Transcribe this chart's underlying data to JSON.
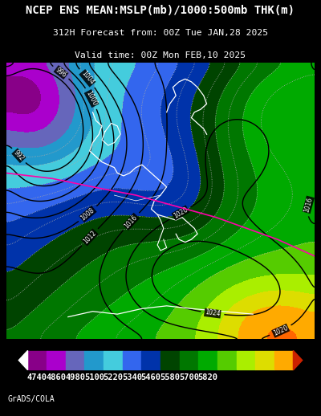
{
  "title_line1": "NCEP ENS MEAN:MSLP(mb)/1000:500mb THK(m)",
  "title_line2": "312H Forecast from: 00Z Tue JAN,28 2025",
  "title_line3": "Valid time: 00Z Mon FEB,10 2025",
  "colorbar_values": [
    4740,
    4860,
    4980,
    5100,
    5220,
    5340,
    5460,
    5580,
    5700,
    5820
  ],
  "colorbar_colors": [
    "#8B008B",
    "#9400D3",
    "#7B68EE",
    "#4169E1",
    "#00BFFF",
    "#00CED1",
    "#1E90FF",
    "#00008B",
    "#006400",
    "#008000",
    "#32CD32",
    "#ADFF2F",
    "#FFD700",
    "#FFA500",
    "#FF4500"
  ],
  "background_color": "#000000",
  "watermark": "GrADS/COLA",
  "title_fontsize": 10.0,
  "subtitle_fontsize": 8.2,
  "colorbar_label_fontsize": 7.5
}
